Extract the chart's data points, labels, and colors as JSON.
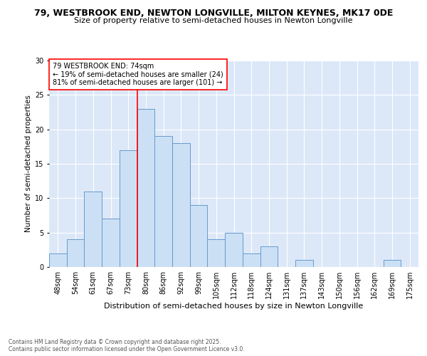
{
  "title1": "79, WESTBROOK END, NEWTON LONGVILLE, MILTON KEYNES, MK17 0DE",
  "title2": "Size of property relative to semi-detached houses in Newton Longville",
  "xlabel": "Distribution of semi-detached houses by size in Newton Longville",
  "ylabel": "Number of semi-detached properties",
  "bar_labels": [
    "48sqm",
    "54sqm",
    "61sqm",
    "67sqm",
    "73sqm",
    "80sqm",
    "86sqm",
    "92sqm",
    "99sqm",
    "105sqm",
    "112sqm",
    "118sqm",
    "124sqm",
    "131sqm",
    "137sqm",
    "143sqm",
    "150sqm",
    "156sqm",
    "162sqm",
    "169sqm",
    "175sqm"
  ],
  "bar_values": [
    2,
    4,
    11,
    7,
    17,
    23,
    19,
    18,
    9,
    4,
    5,
    2,
    3,
    0,
    1,
    0,
    0,
    0,
    0,
    1,
    0
  ],
  "bar_color": "#cce0f5",
  "bar_edge_color": "#6699cc",
  "vline_x": 4.5,
  "vline_color": "red",
  "annotation_text": "79 WESTBROOK END: 74sqm\n← 19% of semi-detached houses are smaller (24)\n81% of semi-detached houses are larger (101) →",
  "annotation_box_color": "white",
  "annotation_box_edge": "red",
  "ylim": [
    0,
    30
  ],
  "yticks": [
    0,
    5,
    10,
    15,
    20,
    25,
    30
  ],
  "background_color": "#dce8f8",
  "footer": "Contains HM Land Registry data © Crown copyright and database right 2025.\nContains public sector information licensed under the Open Government Licence v3.0.",
  "title1_fontsize": 9,
  "title2_fontsize": 8,
  "xlabel_fontsize": 8,
  "ylabel_fontsize": 7.5,
  "tick_fontsize": 7,
  "ann_fontsize": 7
}
